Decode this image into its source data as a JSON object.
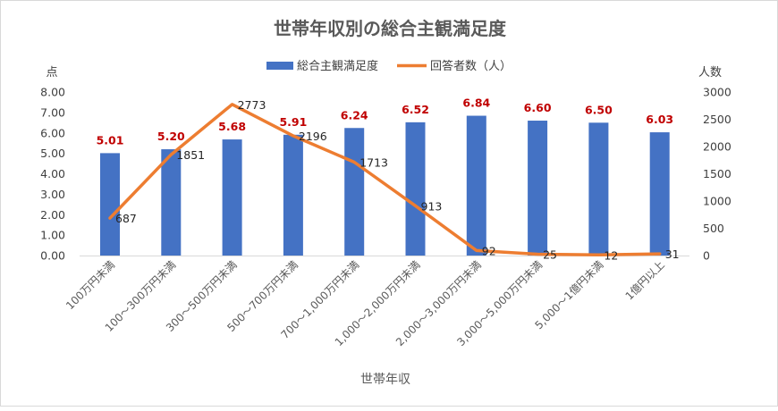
{
  "chart_data": {
    "type": "bar+line",
    "title": "世帯年収別の総合主観満足度",
    "xlabel": "世帯年収",
    "ylabel_left": "点",
    "ylabel_right": "人数",
    "ylim_left": [
      0,
      8
    ],
    "ylim_right": [
      0,
      3000
    ],
    "yticks_left": [
      "0.00",
      "1.00",
      "2.00",
      "3.00",
      "4.00",
      "5.00",
      "6.00",
      "7.00",
      "8.00"
    ],
    "yticks_right": [
      "0",
      "500",
      "1000",
      "1500",
      "2000",
      "2500",
      "3000"
    ],
    "grid": false,
    "legend_position": "top",
    "categories": [
      "100万円未満",
      "100～300万円未満",
      "300～500万円未満",
      "500～700万円未満",
      "700～1,000万円未満",
      "1,000～2,000万円未満",
      "2,000～3,000万円未満",
      "3,000～5,000万円未満",
      "5,000～1億円未満",
      "1億円以上"
    ],
    "series": [
      {
        "name": "総合主観満足度",
        "type": "bar",
        "axis": "left",
        "color": "#4472C4",
        "label_color": "#C00000",
        "values": [
          5.01,
          5.2,
          5.68,
          5.91,
          6.24,
          6.52,
          6.84,
          6.6,
          6.5,
          6.03
        ],
        "labels": [
          "5.01",
          "5.20",
          "5.68",
          "5.91",
          "6.24",
          "6.52",
          "6.84",
          "6.60",
          "6.50",
          "6.03"
        ]
      },
      {
        "name": "回答者数（人）",
        "type": "line",
        "axis": "right",
        "color": "#ED7D31",
        "label_color": "#262626",
        "values": [
          687,
          1851,
          2773,
          2196,
          1713,
          913,
          92,
          25,
          12,
          31
        ],
        "labels": [
          "687",
          "1851",
          "2773",
          "2196",
          "1713",
          "913",
          "92",
          "25",
          "12",
          "31"
        ]
      }
    ]
  },
  "legend": {
    "bar_label": "総合主観満足度",
    "line_label": "回答者数（人）"
  }
}
